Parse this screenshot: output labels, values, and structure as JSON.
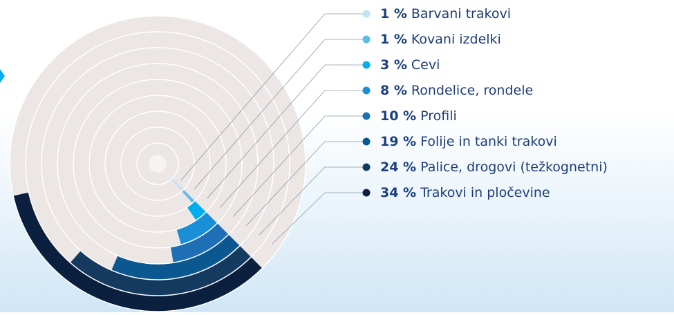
{
  "chart_data": {
    "type": "radial_bar",
    "categories": [
      "Barvani trakovi",
      "Kovani izdelki",
      "Cevi",
      "Rondelice, rondele",
      "Profili",
      "Folije in tanki trakovi",
      "Palice, drogovi (težkognetni)",
      "Trakovi in pločevine"
    ],
    "values": [
      1,
      1,
      3,
      8,
      10,
      19,
      24,
      34
    ],
    "value_labels": [
      "1 %",
      "1 %",
      "3 %",
      "8 %",
      "10 %",
      "19 %",
      "24 %",
      "34 %"
    ],
    "colors": [
      "#c3e2f6",
      "#5cbbec",
      "#00aeef",
      "#1a8fd8",
      "#1f6fb7",
      "#0b5890",
      "#143a60",
      "#0b1f3e"
    ]
  }
}
